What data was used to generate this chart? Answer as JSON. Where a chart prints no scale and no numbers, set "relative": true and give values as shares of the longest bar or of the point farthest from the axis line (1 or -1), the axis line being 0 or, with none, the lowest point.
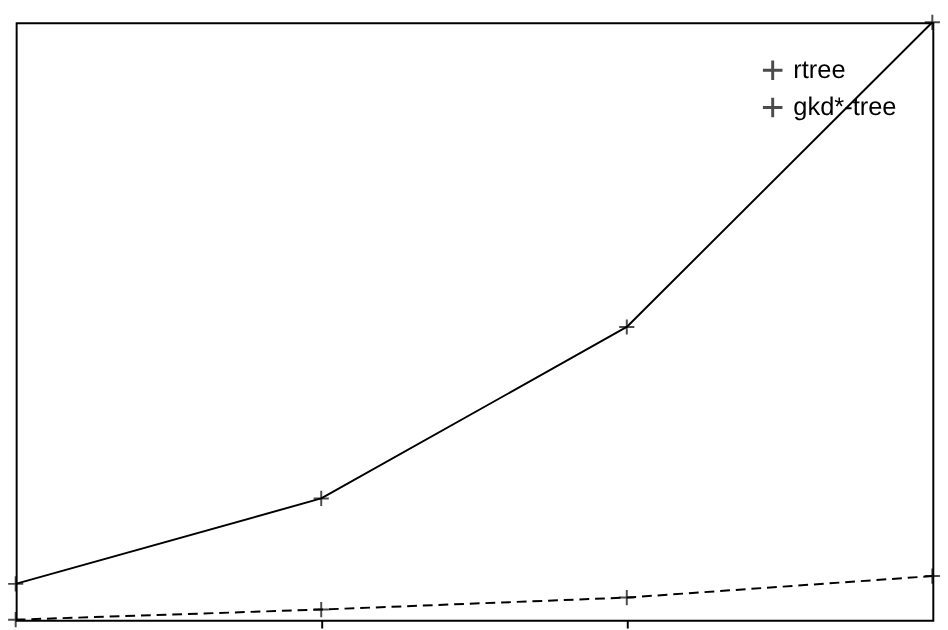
{
  "chart_data": {
    "type": "line",
    "relative": true,
    "categories": [
      null,
      null,
      null,
      null
    ],
    "legend": "top right",
    "marker": "cross",
    "grid": false,
    "series": [
      {
        "name": "rtree",
        "color": "#000000",
        "line_style": "solid",
        "values": [
          0.06,
          0.203,
          0.49,
          1
        ]
      },
      {
        "name": "gkd*-tree",
        "color": "#000000",
        "line_style": "dashed",
        "values": [
          0,
          0.017,
          0.037,
          0.073
        ]
      }
    ]
  }
}
